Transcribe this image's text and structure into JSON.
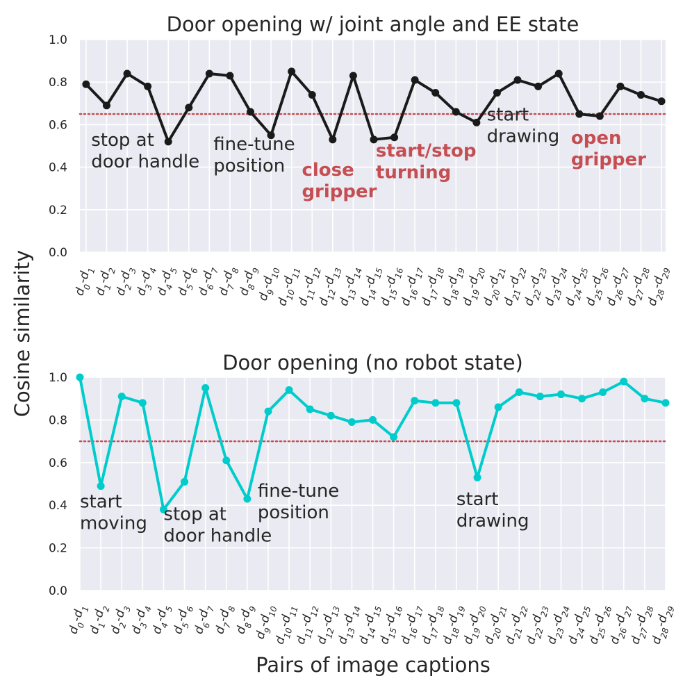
{
  "ylabel": "Cosine similarity",
  "xlabel": "Pairs of image captions",
  "chart_data": [
    {
      "type": "line",
      "title": "Door opening w/ joint angle and EE state",
      "ylim": [
        0,
        1.0
      ],
      "yticks": [
        "0.0",
        "0.2",
        "0.4",
        "0.6",
        "0.8",
        "1.0"
      ],
      "threshold": 0.65,
      "threshold_color": "#c44e52",
      "line_color": "#1a1a1a",
      "background": "#eaeaf2",
      "grid": true,
      "categories": [
        {
          "a": "0",
          "b": "1"
        },
        {
          "a": "1",
          "b": "2"
        },
        {
          "a": "2",
          "b": "3"
        },
        {
          "a": "3",
          "b": "4"
        },
        {
          "a": "4",
          "b": "5"
        },
        {
          "a": "5",
          "b": "6"
        },
        {
          "a": "6",
          "b": "7"
        },
        {
          "a": "7",
          "b": "8"
        },
        {
          "a": "8",
          "b": "9"
        },
        {
          "a": "9",
          "b": "10"
        },
        {
          "a": "10",
          "b": "11"
        },
        {
          "a": "11",
          "b": "12"
        },
        {
          "a": "12",
          "b": "13"
        },
        {
          "a": "13",
          "b": "14"
        },
        {
          "a": "14",
          "b": "15"
        },
        {
          "a": "15",
          "b": "16"
        },
        {
          "a": "16",
          "b": "17"
        },
        {
          "a": "17",
          "b": "18"
        },
        {
          "a": "18",
          "b": "19"
        },
        {
          "a": "19",
          "b": "20"
        },
        {
          "a": "20",
          "b": "21"
        },
        {
          "a": "21",
          "b": "22"
        },
        {
          "a": "22",
          "b": "23"
        },
        {
          "a": "23",
          "b": "24"
        },
        {
          "a": "24",
          "b": "25"
        },
        {
          "a": "25",
          "b": "26"
        },
        {
          "a": "26",
          "b": "27"
        },
        {
          "a": "27",
          "b": "28"
        },
        {
          "a": "28",
          "b": "29"
        }
      ],
      "values": [
        0.79,
        0.69,
        0.84,
        0.78,
        0.52,
        0.68,
        0.84,
        0.83,
        0.66,
        0.55,
        0.85,
        0.74,
        0.53,
        0.83,
        0.53,
        0.54,
        0.81,
        0.75,
        0.66,
        0.61,
        0.75,
        0.81,
        0.78,
        0.84,
        0.65,
        0.64,
        0.78,
        0.74,
        0.71
      ],
      "annotations": [
        {
          "lines": [
            "stop at",
            "door handle"
          ],
          "x": 0.25,
          "y": 0.5,
          "highlight": false
        },
        {
          "lines": [
            "fine-tune",
            "position"
          ],
          "x": 6.2,
          "y": 0.48,
          "highlight": false
        },
        {
          "lines": [
            "close",
            "gripper"
          ],
          "x": 10.5,
          "y": 0.36,
          "highlight": true
        },
        {
          "lines": [
            "start/stop",
            "turning"
          ],
          "x": 14.1,
          "y": 0.45,
          "highlight": true
        },
        {
          "lines": [
            "start",
            "drawing"
          ],
          "x": 19.5,
          "y": 0.62,
          "highlight": false
        },
        {
          "lines": [
            "open",
            "gripper"
          ],
          "x": 23.6,
          "y": 0.51,
          "highlight": true
        }
      ]
    },
    {
      "type": "line",
      "title": "Door opening (no robot state)",
      "ylim": [
        0,
        1.0
      ],
      "yticks": [
        "0.0",
        "0.2",
        "0.4",
        "0.6",
        "0.8",
        "1.0"
      ],
      "threshold": 0.7,
      "threshold_color": "#c44e52",
      "line_color": "#00cccc",
      "background": "#eaeaf2",
      "grid": true,
      "categories": [
        {
          "a": "0",
          "b": "1"
        },
        {
          "a": "1",
          "b": "2"
        },
        {
          "a": "2",
          "b": "3"
        },
        {
          "a": "3",
          "b": "4"
        },
        {
          "a": "4",
          "b": "5"
        },
        {
          "a": "5",
          "b": "6"
        },
        {
          "a": "6",
          "b": "7"
        },
        {
          "a": "7",
          "b": "8"
        },
        {
          "a": "8",
          "b": "9"
        },
        {
          "a": "9",
          "b": "10"
        },
        {
          "a": "10",
          "b": "11"
        },
        {
          "a": "11",
          "b": "12"
        },
        {
          "a": "12",
          "b": "13"
        },
        {
          "a": "13",
          "b": "14"
        },
        {
          "a": "14",
          "b": "15"
        },
        {
          "a": "15",
          "b": "16"
        },
        {
          "a": "16",
          "b": "17"
        },
        {
          "a": "17",
          "b": "18"
        },
        {
          "a": "18",
          "b": "19"
        },
        {
          "a": "19",
          "b": "20"
        },
        {
          "a": "20",
          "b": "21"
        },
        {
          "a": "21",
          "b": "22"
        },
        {
          "a": "22",
          "b": "23"
        },
        {
          "a": "23",
          "b": "24"
        },
        {
          "a": "24",
          "b": "25"
        },
        {
          "a": "25",
          "b": "26"
        },
        {
          "a": "26",
          "b": "27"
        },
        {
          "a": "27",
          "b": "28"
        },
        {
          "a": "28",
          "b": "29"
        }
      ],
      "values": [
        1.0,
        0.49,
        0.91,
        0.88,
        0.38,
        0.51,
        0.95,
        0.61,
        0.43,
        0.84,
        0.94,
        0.85,
        0.82,
        0.79,
        0.8,
        0.72,
        0.89,
        0.88,
        0.88,
        0.53,
        0.86,
        0.93,
        0.91,
        0.92,
        0.9,
        0.93,
        0.98,
        0.9,
        0.88
      ],
      "annotations": [
        {
          "lines": [
            "start",
            "moving"
          ],
          "x": 0.0,
          "y": 0.39,
          "highlight": false
        },
        {
          "lines": [
            "stop at",
            "door handle"
          ],
          "x": 4.0,
          "y": 0.33,
          "highlight": false
        },
        {
          "lines": [
            "fine-tune",
            "position"
          ],
          "x": 8.5,
          "y": 0.44,
          "highlight": false
        },
        {
          "lines": [
            "start",
            "drawing"
          ],
          "x": 18.0,
          "y": 0.4,
          "highlight": false
        }
      ]
    }
  ]
}
